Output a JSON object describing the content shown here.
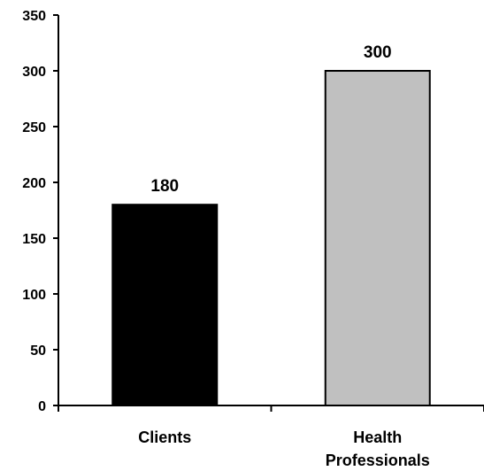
{
  "chart_data": {
    "type": "bar",
    "categories": [
      [
        "Clients"
      ],
      [
        "Health",
        "Professionals"
      ]
    ],
    "values": [
      180,
      300
    ],
    "data_labels": [
      "180",
      "300"
    ],
    "bar_colors": [
      "#000000",
      "#c0c0c0"
    ],
    "ylim": [
      0,
      350
    ],
    "yticks": [
      0,
      50,
      100,
      150,
      200,
      250,
      300,
      350
    ],
    "ytick_labels": [
      "0",
      "50",
      "100",
      "150",
      "200",
      "250",
      "300",
      "350"
    ],
    "grid": false,
    "legend": "none"
  }
}
